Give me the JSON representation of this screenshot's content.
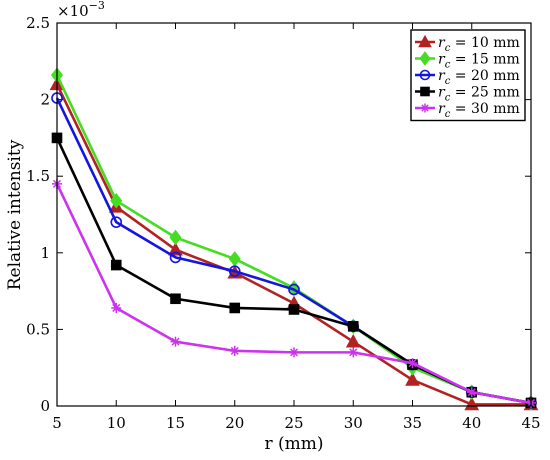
{
  "chart_data": {
    "type": "line",
    "title": "",
    "xlabel": "r (mm)",
    "ylabel": "Relative intensity",
    "y_multiplier": "×10",
    "y_multiplier_exp": "−3",
    "xlim": [
      5,
      45
    ],
    "ylim": [
      0,
      2.5
    ],
    "x_ticks": [
      "5",
      "10",
      "15",
      "20",
      "25",
      "30",
      "35",
      "40",
      "45"
    ],
    "y_ticks": [
      "0",
      "0.5",
      "1",
      "1.5",
      "2",
      "2.5"
    ],
    "grid": false,
    "legend_placement": "top-right",
    "x": [
      5,
      10,
      15,
      20,
      25,
      30,
      35,
      40,
      45
    ],
    "series": [
      {
        "name": "r_c = 10 mm",
        "legend_var": "r",
        "legend_sub": "c",
        "legend_rest": " = 10 mm",
        "color": "#b22222",
        "marker": "triangle",
        "values": [
          2.1,
          1.3,
          1.02,
          0.87,
          0.67,
          0.42,
          0.17,
          0.01,
          0.01
        ]
      },
      {
        "name": "r_c = 15 mm",
        "legend_var": "r",
        "legend_sub": "c",
        "legend_rest": " = 15 mm",
        "color": "#44dd22",
        "marker": "diamond",
        "values": [
          2.16,
          1.34,
          1.1,
          0.96,
          0.77,
          0.52,
          0.25,
          0.09,
          0.02
        ]
      },
      {
        "name": "r_c = 20 mm",
        "legend_var": "r",
        "legend_sub": "c",
        "legend_rest": " = 20 mm",
        "color": "#1515e0",
        "marker": "circle",
        "values": [
          2.01,
          1.2,
          0.97,
          0.88,
          0.76,
          0.52,
          0.27,
          0.09,
          0.02
        ]
      },
      {
        "name": "r_c = 25 mm",
        "legend_var": "r",
        "legend_sub": "c",
        "legend_rest": " = 25 mm",
        "color": "#000000",
        "marker": "square",
        "values": [
          1.75,
          0.92,
          0.7,
          0.64,
          0.63,
          0.52,
          0.27,
          0.09,
          0.02
        ]
      },
      {
        "name": "r_c = 30 mm",
        "legend_var": "r",
        "legend_sub": "c",
        "legend_rest": " = 30 mm",
        "color": "#cc33ee",
        "marker": "star",
        "values": [
          1.45,
          0.64,
          0.42,
          0.36,
          0.35,
          0.35,
          0.28,
          0.09,
          0.02
        ]
      }
    ]
  }
}
